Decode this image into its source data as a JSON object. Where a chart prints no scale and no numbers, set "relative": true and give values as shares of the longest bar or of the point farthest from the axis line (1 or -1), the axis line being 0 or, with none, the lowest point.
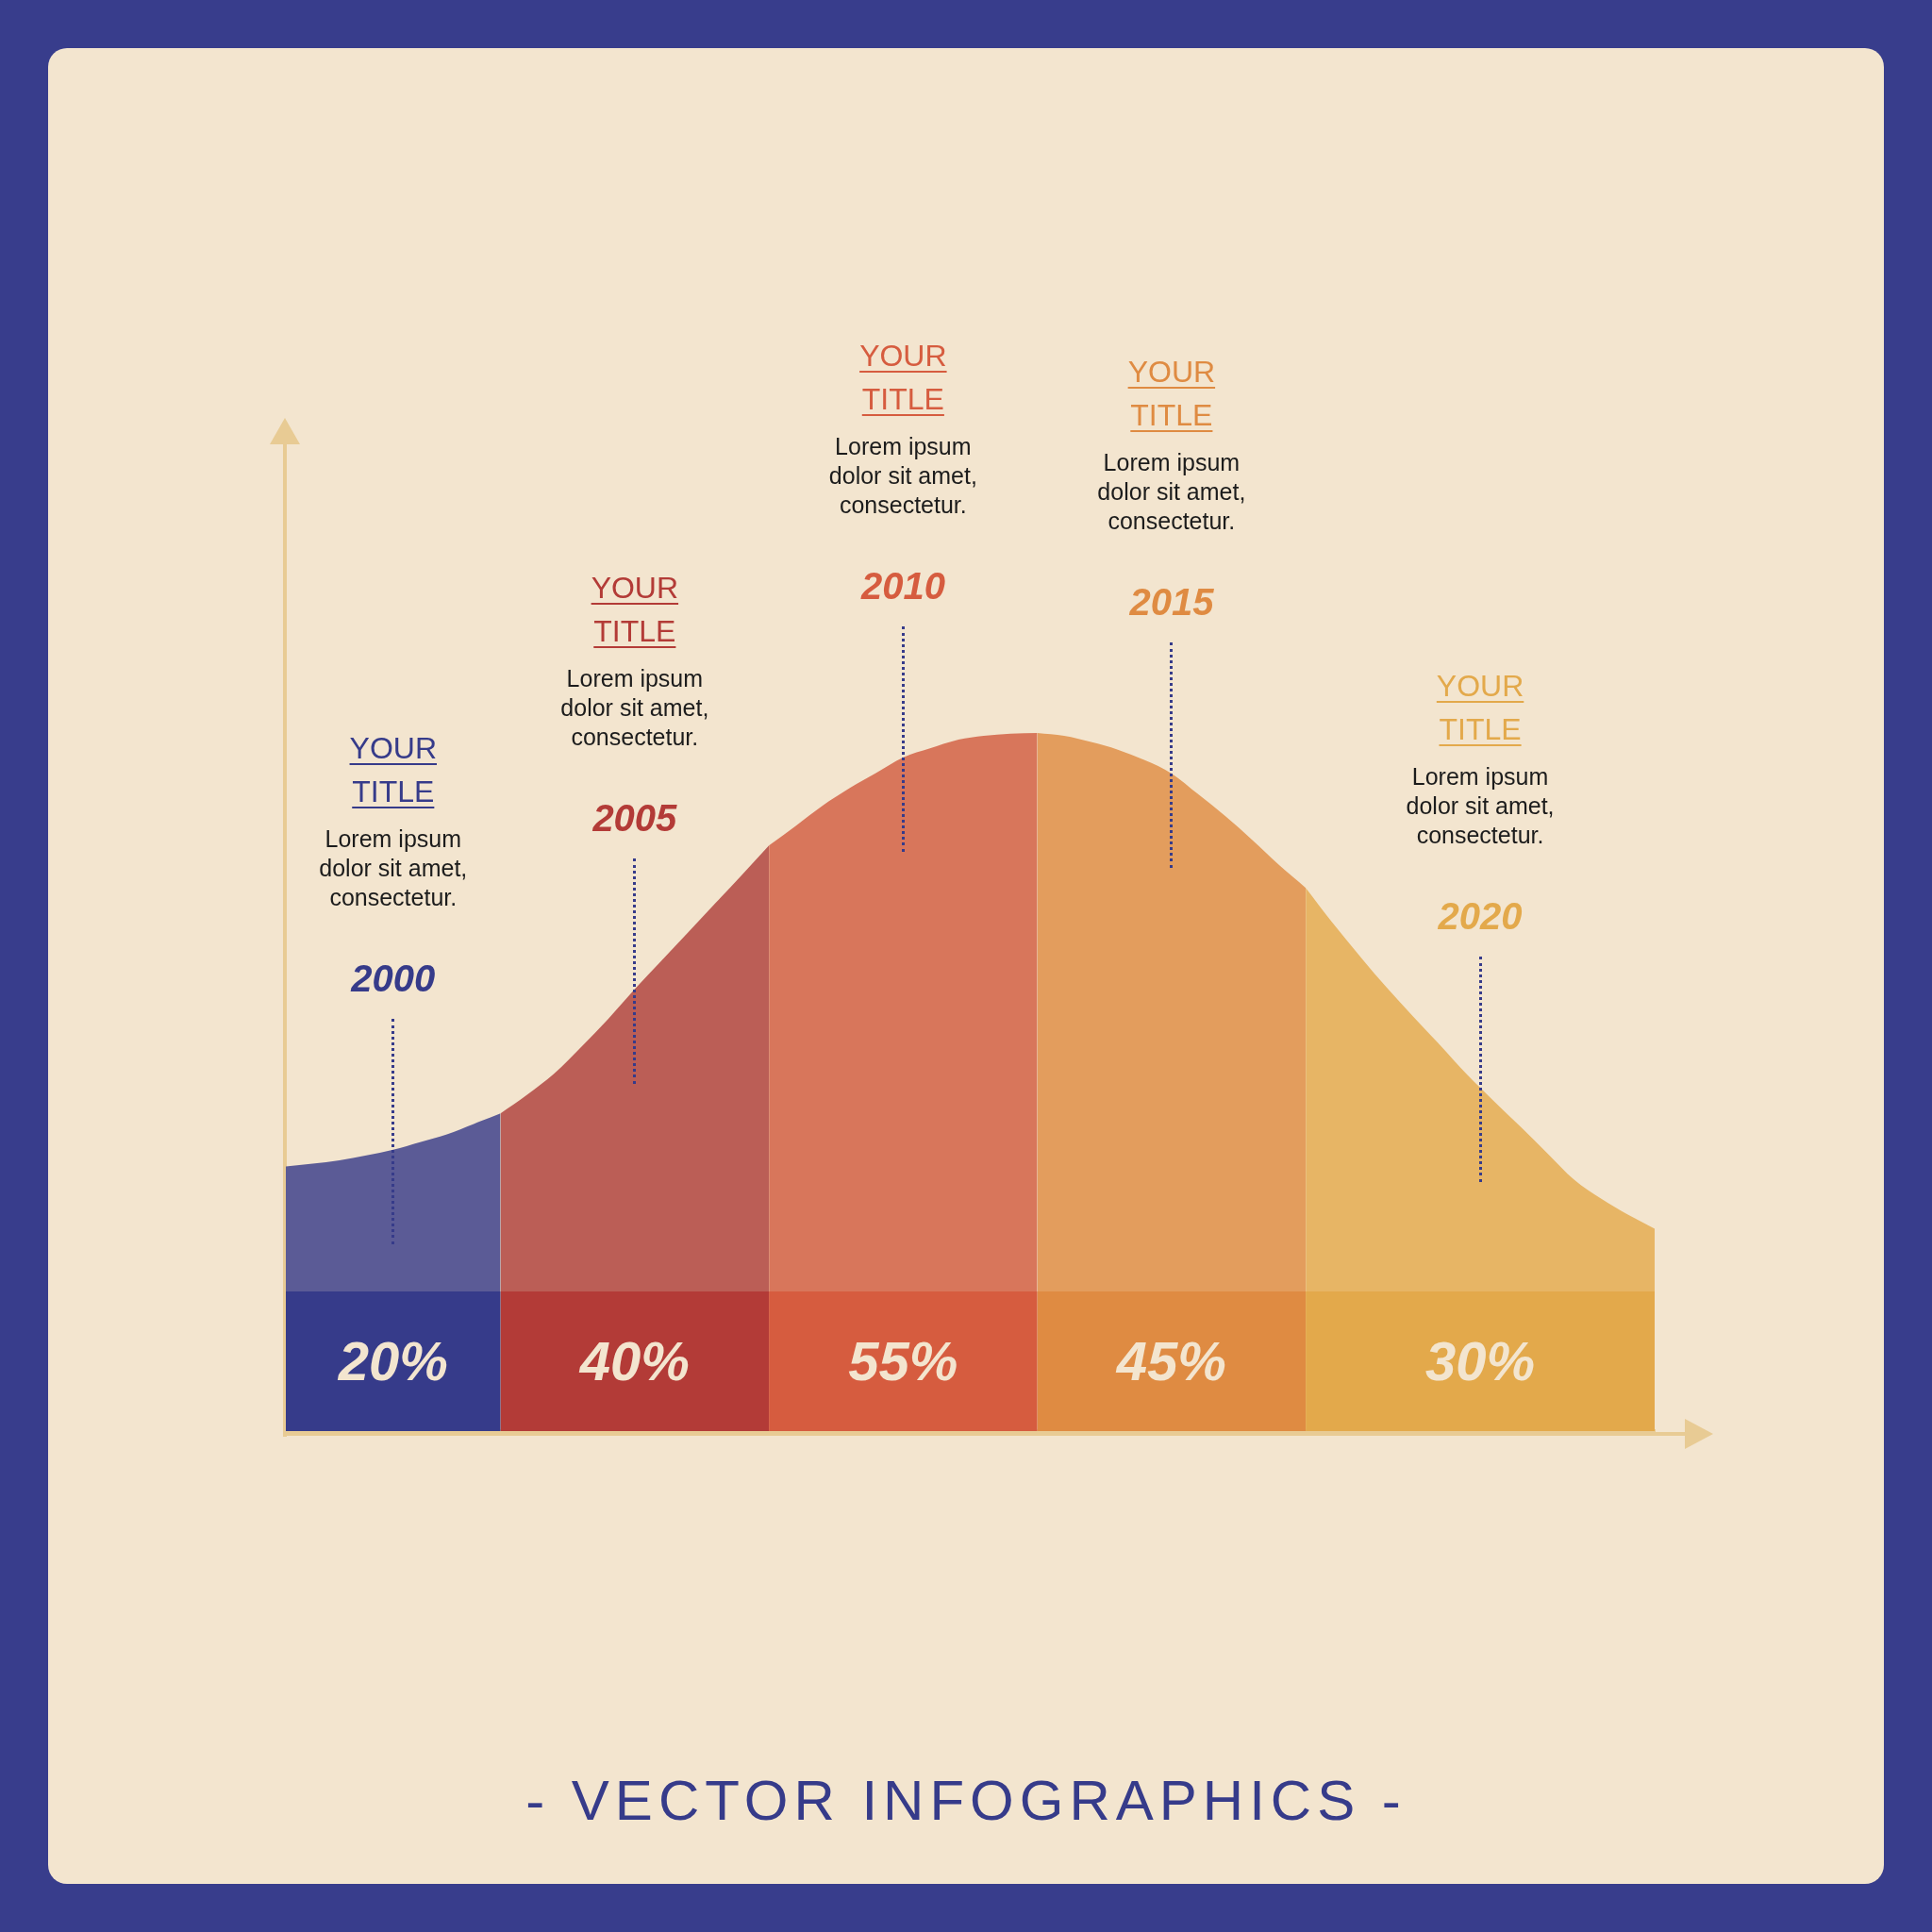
{
  "chart_data": {
    "type": "area",
    "relative": true,
    "marker": "none",
    "title": "- VECTOR INFOGRAPHICS -",
    "categories": [
      null,
      null,
      null,
      null,
      null,
      null,
      null,
      null,
      null,
      null,
      null,
      null,
      null,
      null,
      null,
      null,
      null,
      null,
      null,
      null,
      null,
      null,
      null,
      null,
      null,
      null,
      null,
      null,
      null,
      null,
      null,
      null,
      null,
      null,
      null,
      null,
      null,
      null,
      null,
      null,
      null,
      null,
      null,
      null,
      null,
      null,
      null,
      null,
      null,
      null,
      null,
      null
    ],
    "series": [
      {
        "name": "2000",
        "color": "#5b5b96",
        "values": [
          0.379,
          0.383,
          0.388,
          0.395,
          0.403,
          0.414,
          0.425,
          0.44,
          0.455,
          null,
          null,
          null,
          null,
          null,
          null,
          null,
          null,
          null,
          null,
          null,
          null,
          null,
          null,
          null,
          null,
          null,
          null,
          null,
          null,
          null,
          null,
          null,
          null,
          null,
          null,
          null,
          null,
          null,
          null,
          null,
          null,
          null,
          null,
          null,
          null,
          null,
          null,
          null,
          null,
          null,
          null,
          null
        ]
      },
      {
        "name": "2005",
        "color": "#bb5e56",
        "values": [
          null,
          null,
          null,
          null,
          null,
          null,
          null,
          null,
          0.455,
          0.482,
          0.512,
          0.55,
          0.59,
          0.633,
          0.674,
          0.715,
          0.756,
          0.797,
          0.839,
          null,
          null,
          null,
          null,
          null,
          null,
          null,
          null,
          null,
          null,
          null,
          null,
          null,
          null,
          null,
          null,
          null,
          null,
          null,
          null,
          null,
          null,
          null,
          null,
          null,
          null,
          null,
          null,
          null,
          null,
          null,
          null,
          null
        ]
      },
      {
        "name": "2010",
        "color": "#d8765b",
        "values": [
          null,
          null,
          null,
          null,
          null,
          null,
          null,
          null,
          null,
          null,
          null,
          null,
          null,
          null,
          null,
          null,
          null,
          null,
          0.839,
          0.867,
          0.896,
          0.921,
          0.943,
          0.965,
          0.978,
          0.99,
          0.996,
          0.999,
          1,
          null,
          null,
          null,
          null,
          null,
          null,
          null,
          null,
          null,
          null,
          null,
          null,
          null,
          null,
          null,
          null,
          null,
          null,
          null,
          null,
          null,
          null,
          null
        ]
      },
      {
        "name": "2015",
        "color": "#e39d5d",
        "values": [
          null,
          null,
          null,
          null,
          null,
          null,
          null,
          null,
          null,
          null,
          null,
          null,
          null,
          null,
          null,
          null,
          null,
          null,
          null,
          null,
          null,
          null,
          null,
          null,
          null,
          null,
          null,
          null,
          1,
          0.996,
          0.987,
          0.976,
          0.961,
          0.942,
          0.912,
          0.881,
          0.847,
          0.811,
          0.778,
          null,
          null,
          null,
          null,
          null,
          null,
          null,
          null,
          null,
          null,
          null,
          null,
          null
        ]
      },
      {
        "name": "2020",
        "color": "#e7b565",
        "values": [
          null,
          null,
          null,
          null,
          null,
          null,
          null,
          null,
          null,
          null,
          null,
          null,
          null,
          null,
          null,
          null,
          null,
          null,
          null,
          null,
          null,
          null,
          null,
          null,
          null,
          null,
          null,
          null,
          null,
          null,
          null,
          null,
          null,
          null,
          null,
          null,
          null,
          null,
          0.778,
          0.728,
          0.681,
          0.636,
          0.594,
          0.553,
          0.511,
          0.473,
          0.436,
          0.398,
          0.36,
          0.333,
          0.31,
          0.29
        ]
      },
      {
        "color": "#363b8a",
        "values": [
          0.2,
          0.2,
          0.2,
          0.2,
          0.2,
          0.2,
          0.2,
          0.2,
          0.2,
          null,
          null,
          null,
          null,
          null,
          null,
          null,
          null,
          null,
          null,
          null,
          null,
          null,
          null,
          null,
          null,
          null,
          null,
          null,
          null,
          null,
          null,
          null,
          null,
          null,
          null,
          null,
          null,
          null,
          null,
          null,
          null,
          null,
          null,
          null,
          null,
          null,
          null,
          null,
          null,
          null,
          null,
          null
        ]
      },
      {
        "color": "#b33b37",
        "values": [
          null,
          null,
          null,
          null,
          null,
          null,
          null,
          null,
          0.2,
          0.2,
          0.2,
          0.2,
          0.2,
          0.2,
          0.2,
          0.2,
          0.2,
          0.2,
          0.2,
          null,
          null,
          null,
          null,
          null,
          null,
          null,
          null,
          null,
          null,
          null,
          null,
          null,
          null,
          null,
          null,
          null,
          null,
          null,
          null,
          null,
          null,
          null,
          null,
          null,
          null,
          null,
          null,
          null,
          null,
          null,
          null,
          null
        ]
      },
      {
        "color": "#d65c3f",
        "values": [
          null,
          null,
          null,
          null,
          null,
          null,
          null,
          null,
          null,
          null,
          null,
          null,
          null,
          null,
          null,
          null,
          null,
          null,
          0.2,
          0.2,
          0.2,
          0.2,
          0.2,
          0.2,
          0.2,
          0.2,
          0.2,
          0.2,
          0.2,
          null,
          null,
          null,
          null,
          null,
          null,
          null,
          null,
          null,
          null,
          null,
          null,
          null,
          null,
          null,
          null,
          null,
          null,
          null,
          null,
          null,
          null,
          null
        ]
      },
      {
        "color": "#df8b42",
        "values": [
          null,
          null,
          null,
          null,
          null,
          null,
          null,
          null,
          null,
          null,
          null,
          null,
          null,
          null,
          null,
          null,
          null,
          null,
          null,
          null,
          null,
          null,
          null,
          null,
          null,
          null,
          null,
          null,
          0.2,
          0.2,
          0.2,
          0.2,
          0.2,
          0.2,
          0.2,
          0.2,
          0.2,
          0.2,
          0.2,
          null,
          null,
          null,
          null,
          null,
          null,
          null,
          null,
          null,
          null,
          null,
          null,
          null
        ]
      },
      {
        "color": "#e3a94b",
        "values": [
          null,
          null,
          null,
          null,
          null,
          null,
          null,
          null,
          null,
          null,
          null,
          null,
          null,
          null,
          null,
          null,
          null,
          null,
          null,
          null,
          null,
          null,
          null,
          null,
          null,
          null,
          null,
          null,
          null,
          null,
          null,
          null,
          null,
          null,
          null,
          null,
          null,
          null,
          0.2,
          0.2,
          0.2,
          0.2,
          0.2,
          0.2,
          0.2,
          0.2,
          0.2,
          0.2,
          0.2,
          0.2,
          0.2,
          0.2
        ]
      }
    ],
    "annotations": [
      "YOUR TITLE",
      "Lorem ipsum dolor sit amet, consectetur.",
      "20%",
      "YOUR TITLE",
      "Lorem ipsum dolor sit amet, consectetur.",
      "40%",
      "YOUR TITLE",
      "Lorem ipsum dolor sit amet, consectetur.",
      "55%",
      "YOUR TITLE",
      "Lorem ipsum dolor sit amet, consectetur.",
      "45%",
      "YOUR TITLE",
      "Lorem ipsum dolor sit amet, consectetur.",
      "30%"
    ]
  }
}
